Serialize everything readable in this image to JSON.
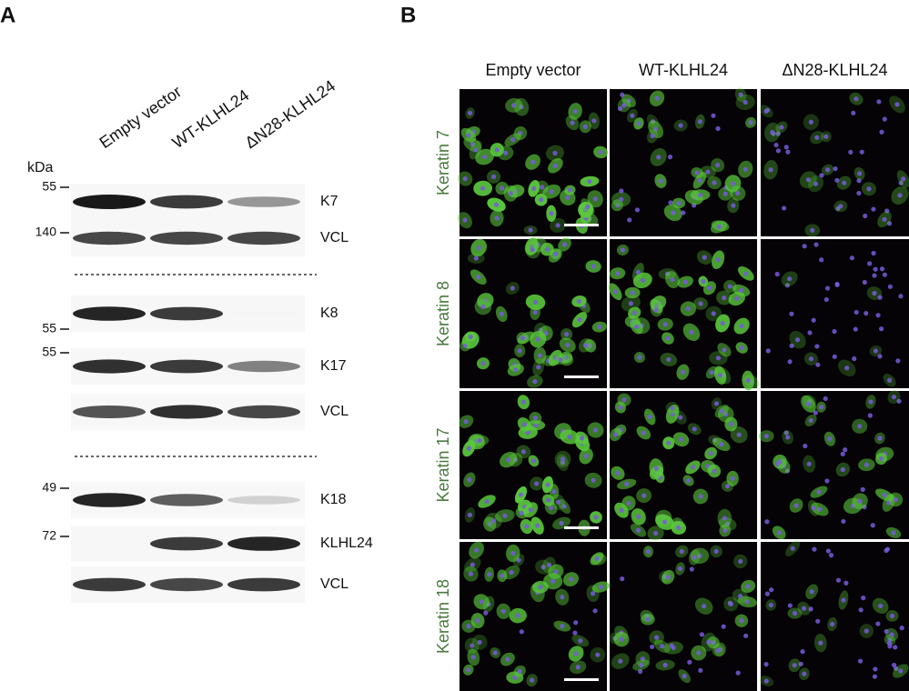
{
  "panel_a": {
    "label": "A",
    "lanes": [
      "Empty vector",
      "WT-KLHL24",
      "ΔN28-KLHL24"
    ],
    "kda_label": "kDa",
    "blots": [
      {
        "label": "K7",
        "marker": "55"
      },
      {
        "label": "VCL",
        "marker": "140"
      },
      {
        "label": "K8",
        "marker": "55"
      },
      {
        "label": "K17",
        "marker": "55"
      },
      {
        "label": "VCL"
      },
      {
        "label": "K18",
        "marker": "49"
      },
      {
        "label": "KLHL24",
        "marker": "72"
      },
      {
        "label": "VCL"
      }
    ]
  },
  "panel_b": {
    "label": "B",
    "columns": [
      "Empty vector",
      "WT-KLHL24",
      "ΔN28-KLHL24"
    ],
    "rows": [
      "Keratin 7",
      "Keratin 8",
      "Keratin 17",
      "Keratin 18"
    ]
  }
}
